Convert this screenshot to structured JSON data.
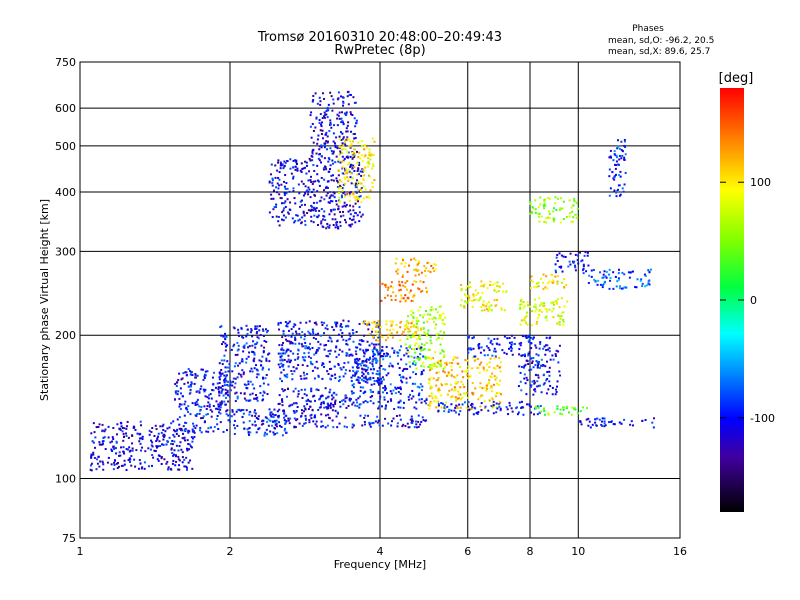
{
  "header": {
    "title_line1": "Tromsø 20160310 20:48:00–20:49:43",
    "title_line2": "RwPretec (8p)",
    "phases_heading": "Phases",
    "phases_line1": "mean, sd,O: -96.2, 20.5",
    "phases_line2": "mean, sd,X:  89.6, 25.7"
  },
  "colorbar": {
    "label": "[deg]",
    "ticks": [
      "100",
      "0",
      "-100"
    ],
    "tick_values": [
      100,
      0,
      -100
    ],
    "range": [
      -180,
      180
    ]
  },
  "chart_data": {
    "type": "scatter",
    "title": "Tromsø 20160310 20:48:00–20:49:43",
    "subtitle": "RwPretec (8p)",
    "xlabel": "Frequency [MHz]",
    "ylabel": "Stationary phase Virtual Height [km]",
    "xscale": "log",
    "yscale": "log",
    "xlim": [
      1,
      16
    ],
    "ylim": [
      75,
      750
    ],
    "xticks": [
      1,
      2,
      4,
      6,
      8,
      10,
      16
    ],
    "xtick_labels": [
      "1",
      "2",
      "4",
      "6",
      "8",
      "10",
      "16"
    ],
    "yticks": [
      75,
      100,
      200,
      300,
      400,
      500,
      600,
      750
    ],
    "ytick_labels": [
      "75",
      "100",
      "200",
      "300",
      "400",
      "500",
      "600",
      "750"
    ],
    "grid": true,
    "color_variable": "phase [deg]",
    "clusters": [
      {
        "x": [
          1.05,
          1.7
        ],
        "y": [
          104,
          132
        ],
        "phase": -110
      },
      {
        "x": [
          1.55,
          2.0
        ],
        "y": [
          125,
          170
        ],
        "phase": -100
      },
      {
        "x": [
          1.9,
          2.4
        ],
        "y": [
          145,
          210
        ],
        "phase": -100
      },
      {
        "x": [
          2.0,
          2.6
        ],
        "y": [
          123,
          140
        ],
        "phase": -95
      },
      {
        "x": [
          2.4,
          3.7
        ],
        "y": [
          335,
          470
        ],
        "phase": -110
      },
      {
        "x": [
          2.9,
          3.6
        ],
        "y": [
          470,
          650
        ],
        "phase": -110
      },
      {
        "x": [
          3.3,
          3.9
        ],
        "y": [
          380,
          520
        ],
        "phase": 100
      },
      {
        "x": [
          2.5,
          4.0
        ],
        "y": [
          160,
          215
        ],
        "phase": -100
      },
      {
        "x": [
          2.5,
          3.3
        ],
        "y": [
          135,
          155
        ],
        "phase": -110
      },
      {
        "x": [
          2.2,
          5.0
        ],
        "y": [
          128,
          136
        ],
        "phase": -105
      },
      {
        "x": [
          3.0,
          5.0
        ],
        "y": [
          140,
          150
        ],
        "phase": -100
      },
      {
        "x": [
          3.5,
          4.9
        ],
        "y": [
          150,
          190
        ],
        "phase": -90
      },
      {
        "x": [
          3.7,
          5.0
        ],
        "y": [
          195,
          215
        ],
        "phase": 110
      },
      {
        "x": [
          4.0,
          5.0
        ],
        "y": [
          235,
          260
        ],
        "phase": 130
      },
      {
        "x": [
          4.5,
          5.4
        ],
        "y": [
          170,
          230
        ],
        "phase": 60
      },
      {
        "x": [
          4.3,
          5.2
        ],
        "y": [
          265,
          290
        ],
        "phase": 120
      },
      {
        "x": [
          5.0,
          7.0
        ],
        "y": [
          140,
          180
        ],
        "phase": 110
      },
      {
        "x": [
          5.2,
          8.5
        ],
        "y": [
          136,
          145
        ],
        "phase": -100
      },
      {
        "x": [
          5.8,
          7.2
        ],
        "y": [
          225,
          260
        ],
        "phase": 90
      },
      {
        "x": [
          6.0,
          7.5
        ],
        "y": [
          180,
          200
        ],
        "phase": -100
      },
      {
        "x": [
          7.5,
          9.5
        ],
        "y": [
          210,
          240
        ],
        "phase": 80
      },
      {
        "x": [
          7.6,
          9.2
        ],
        "y": [
          150,
          200
        ],
        "phase": -100
      },
      {
        "x": [
          8.0,
          9.5
        ],
        "y": [
          250,
          270
        ],
        "phase": 100
      },
      {
        "x": [
          8.0,
          10.0
        ],
        "y": [
          345,
          390
        ],
        "phase": 50
      },
      {
        "x": [
          8.0,
          10.5
        ],
        "y": [
          136,
          142
        ],
        "phase": 40
      },
      {
        "x": [
          10.0,
          14.5
        ],
        "y": [
          128,
          134
        ],
        "phase": -100
      },
      {
        "x": [
          10.5,
          14.0
        ],
        "y": [
          250,
          275
        ],
        "phase": -80
      },
      {
        "x": [
          9.0,
          10.5
        ],
        "y": [
          270,
          300
        ],
        "phase": -100
      },
      {
        "x": [
          11.5,
          12.5
        ],
        "y": [
          390,
          520
        ],
        "phase": -90
      }
    ]
  }
}
